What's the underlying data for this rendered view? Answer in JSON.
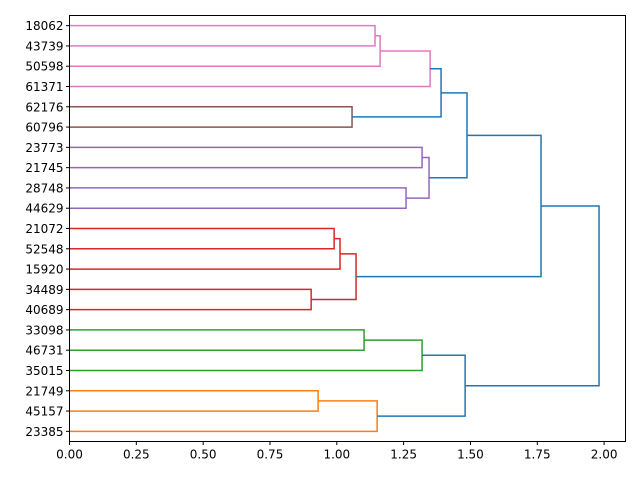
{
  "chart_data": {
    "type": "dendrogram",
    "orientation": "left",
    "title": "",
    "xlabel": "",
    "ylabel": "",
    "xlim": [
      0,
      2.08
    ],
    "xticks": [
      "0.00",
      "0.25",
      "0.50",
      "0.75",
      "1.00",
      "1.25",
      "1.50",
      "1.75",
      "2.00"
    ],
    "xtick_values": [
      0,
      0.25,
      0.5,
      0.75,
      1.0,
      1.25,
      1.5,
      1.75,
      2.0
    ],
    "leaves": [
      "18062",
      "43739",
      "50598",
      "61371",
      "62176",
      "60796",
      "23773",
      "21745",
      "28748",
      "44629",
      "21072",
      "52548",
      "15920",
      "34489",
      "40689",
      "33098",
      "46731",
      "35015",
      "21749",
      "45157",
      "23385"
    ],
    "merges": [
      {
        "a": "L0",
        "b": "L1",
        "height": 1.143,
        "color": "#e377c2"
      },
      {
        "a": "M0",
        "b": "L2",
        "height": 1.162,
        "color": "#e377c2"
      },
      {
        "a": "M1",
        "b": "L3",
        "height": 1.349,
        "color": "#e377c2"
      },
      {
        "a": "L4",
        "b": "L5",
        "height": 1.057,
        "color": "#8c564b"
      },
      {
        "a": "M2",
        "b": "M3",
        "height": 1.39,
        "color": "#1f77b4"
      },
      {
        "a": "L6",
        "b": "L7",
        "height": 1.319,
        "color": "#9467bd"
      },
      {
        "a": "L8",
        "b": "L9",
        "height": 1.259,
        "color": "#9467bd"
      },
      {
        "a": "M5",
        "b": "M6",
        "height": 1.345,
        "color": "#9467bd"
      },
      {
        "a": "M4",
        "b": "M7",
        "height": 1.487,
        "color": "#1f77b4"
      },
      {
        "a": "L10",
        "b": "L11",
        "height": 0.99,
        "color": "#d62728"
      },
      {
        "a": "M9",
        "b": "L12",
        "height": 1.012,
        "color": "#d62728"
      },
      {
        "a": "L13",
        "b": "L14",
        "height": 0.904,
        "color": "#d62728"
      },
      {
        "a": "M10",
        "b": "M11",
        "height": 1.072,
        "color": "#d62728"
      },
      {
        "a": "M8",
        "b": "M12",
        "height": 1.764,
        "color": "#1f77b4"
      },
      {
        "a": "L15",
        "b": "L16",
        "height": 1.102,
        "color": "#2ca02c"
      },
      {
        "a": "M14",
        "b": "L17",
        "height": 1.319,
        "color": "#2ca02c"
      },
      {
        "a": "L18",
        "b": "L19",
        "height": 0.93,
        "color": "#ff7f0e"
      },
      {
        "a": "M16",
        "b": "L20",
        "height": 1.151,
        "color": "#ff7f0e"
      },
      {
        "a": "M15",
        "b": "M17",
        "height": 1.48,
        "color": "#1f77b4"
      },
      {
        "a": "M13",
        "b": "M18",
        "height": 1.981,
        "color": "#1f77b4"
      }
    ]
  }
}
